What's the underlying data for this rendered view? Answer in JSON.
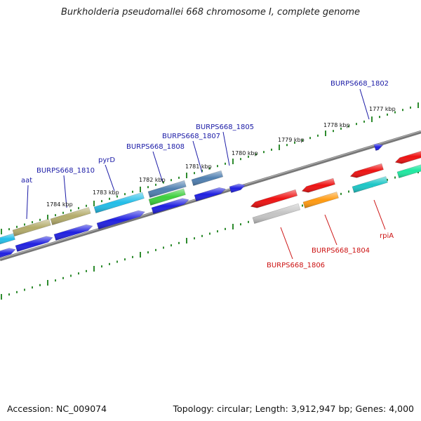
{
  "title": "Burkholderia pseudomallei 668 chromosome I, complete genome",
  "footer": {
    "accession": "Accession: NC_009074",
    "topology": "Topology: circular; Length: 3,912,947 bp; Genes: 4,000"
  },
  "colors": {
    "tick": "#2e8b2e",
    "backbone": "#777777",
    "label_forward": "#1a1aa6",
    "label_reverse": "#cc1111"
  },
  "kbp_ticks": [
    "1777 kbp",
    "1778 kbp",
    "1779 kbp",
    "1780 kbp",
    "1781 kbp",
    "1782 kbp",
    "1783 kbp",
    "1784 kbp"
  ],
  "gene_labels": [
    {
      "name": "BURPS668_1802",
      "strand": "forward"
    },
    {
      "name": "BURPS668_1805",
      "strand": "forward"
    },
    {
      "name": "BURPS668_1807",
      "strand": "forward"
    },
    {
      "name": "BURPS668_1808",
      "strand": "forward"
    },
    {
      "name": "pyrD",
      "strand": "forward"
    },
    {
      "name": "BURPS668_1810",
      "strand": "forward"
    },
    {
      "name": "aat",
      "strand": "forward"
    },
    {
      "name": "rpiA",
      "strand": "reverse"
    },
    {
      "name": "BURPS668_1804",
      "strand": "reverse"
    },
    {
      "name": "BURPS668_1806",
      "strand": "reverse"
    }
  ],
  "features": [
    {
      "name": "gene-blue",
      "color": "#1f1fe0"
    },
    {
      "name": "gene-cyan",
      "color": "#22bde8"
    },
    {
      "name": "gene-olive",
      "color": "#b3ab6a"
    },
    {
      "name": "gene-steel",
      "color": "#4f7fb0"
    },
    {
      "name": "gene-green",
      "color": "#3ccf3c"
    },
    {
      "name": "gene-red",
      "color": "#ee1111"
    },
    {
      "name": "gene-grey",
      "color": "#c4c4c4"
    },
    {
      "name": "gene-orange",
      "color": "#ff9a10"
    },
    {
      "name": "gene-teal",
      "color": "#1cc6c6"
    },
    {
      "name": "gene-mint",
      "color": "#1ee8a0"
    }
  ]
}
